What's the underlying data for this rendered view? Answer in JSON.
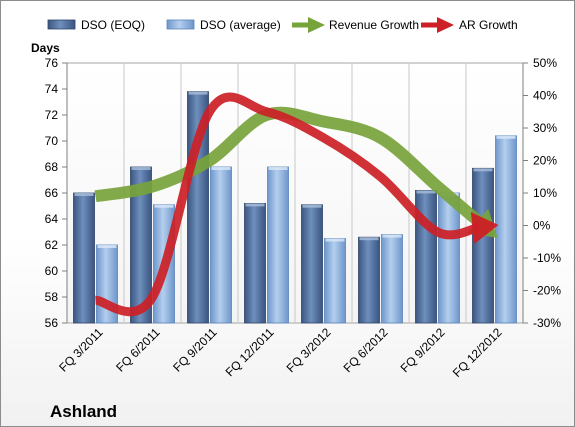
{
  "chart_data": {
    "type": "bar",
    "title": "",
    "company": "Ashland",
    "ylabel_left": "Days",
    "categories": [
      "FQ 3/2011",
      "FQ 6/2011",
      "FQ 9/2011",
      "FQ 12/2011",
      "FQ 3/2012",
      "FQ 6/2012",
      "FQ 9/2012",
      "FQ 12/2012"
    ],
    "left_axis": {
      "min": 56,
      "max": 76,
      "step": 2,
      "ticks": [
        "56",
        "58",
        "60",
        "62",
        "64",
        "66",
        "68",
        "70",
        "72",
        "74",
        "76"
      ]
    },
    "right_axis": {
      "min": -30,
      "max": 50,
      "step": 10,
      "ticks": [
        "-30%",
        "-20%",
        "-10%",
        "0%",
        "10%",
        "20%",
        "30%",
        "40%",
        "50%"
      ]
    },
    "series": [
      {
        "name": "DSO (EOQ)",
        "kind": "bar",
        "axis": "left",
        "color": "#4f6d9a",
        "values": [
          66.0,
          68.0,
          73.8,
          65.2,
          65.1,
          62.6,
          66.2,
          67.9
        ]
      },
      {
        "name": "DSO (average)",
        "kind": "bar",
        "axis": "left",
        "color": "#8eb4e3",
        "values": [
          62.0,
          65.1,
          68.0,
          68.0,
          62.5,
          62.8,
          66.0,
          70.4
        ]
      },
      {
        "name": "Revenue Growth",
        "kind": "line-arrow",
        "axis": "right",
        "color": "#77a33b",
        "values": [
          9,
          12,
          20,
          34,
          32,
          27,
          12,
          -3
        ]
      },
      {
        "name": "AR Growth",
        "kind": "line-arrow",
        "axis": "right",
        "color": "#cc1f26",
        "values": [
          -23,
          -22,
          35,
          35,
          27,
          15,
          -2,
          0
        ]
      }
    ],
    "legend_position": "top",
    "grid": "vertical category lines"
  }
}
